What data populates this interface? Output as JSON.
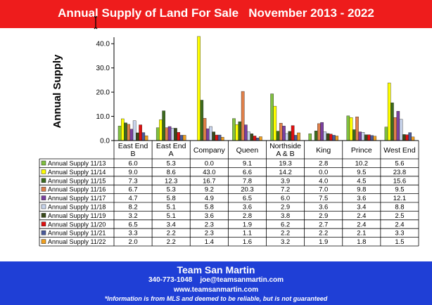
{
  "header": {
    "title": "Annual Supply of Land For Sale   November 2013 - 2022"
  },
  "footer": {
    "name": "Team San Martin",
    "phone": "340-773-1048",
    "email": "joe@teamsanmartin.com",
    "website": "www.teamsanmartin.com",
    "disclaimer": "*Information is from MLS and deemed to be reliable, but is not guaranteed"
  },
  "colors": {
    "header_bg": "#ee1c1c",
    "footer_bg": "#1f3fd6"
  },
  "chart_data": {
    "type": "bar",
    "title": "",
    "ylabel": "Annual Supply",
    "xlabel": "",
    "ylim": [
      0,
      45
    ],
    "yticks": [
      "0.0",
      "10.0",
      "20.0",
      "30.0",
      "40.0"
    ],
    "ytick_values": [
      0,
      10,
      20,
      30,
      40
    ],
    "grid": false,
    "legend": "data-table",
    "categories": [
      "East End B",
      "East End A",
      "Company",
      "Queen",
      "Northside A & B",
      "King",
      "Prince",
      "West End"
    ],
    "category_lines": [
      [
        "East End",
        "B"
      ],
      [
        "East End",
        "A"
      ],
      [
        "Company"
      ],
      [
        "Queen"
      ],
      [
        "Northside",
        "A & B"
      ],
      [
        "King"
      ],
      [
        "Prince"
      ],
      [
        "West End"
      ]
    ],
    "series": [
      {
        "name": "Annual Supply 11/13",
        "color": "#80c040",
        "values": [
          6.0,
          5.3,
          0.0,
          9.1,
          19.3,
          2.8,
          10.2,
          5.6
        ],
        "labels": [
          "6.0",
          "5.3",
          "0.0",
          "9.1",
          "19.3",
          "2.8",
          "10.2",
          "5.6"
        ]
      },
      {
        "name": "Annual Supply 11/14",
        "color": "#ffff00",
        "values": [
          9.0,
          8.6,
          43.0,
          6.6,
          14.2,
          0.0,
          9.5,
          23.8
        ],
        "labels": [
          "9.0",
          "8.6",
          "43.0",
          "6.6",
          "14.2",
          "0.0",
          "9.5",
          "23.8"
        ]
      },
      {
        "name": "Annual Supply 11/15",
        "color": "#3d6b1e",
        "values": [
          7.3,
          12.3,
          16.7,
          7.8,
          3.9,
          4.0,
          4.5,
          15.6
        ],
        "labels": [
          "7.3",
          "12.3",
          "16.7",
          "7.8",
          "3.9",
          "4.0",
          "4.5",
          "15.6"
        ]
      },
      {
        "name": "Annual Supply 11/16",
        "color": "#e0804a",
        "values": [
          6.7,
          5.3,
          9.2,
          20.3,
          7.2,
          7.0,
          9.8,
          9.5
        ],
        "labels": [
          "6.7",
          "5.3",
          "9.2",
          "20.3",
          "7.2",
          "7.0",
          "9.8",
          "9.5"
        ]
      },
      {
        "name": "Annual Supply 11/17",
        "color": "#7a3fa0",
        "values": [
          4.7,
          5.8,
          4.9,
          6.5,
          6.0,
          7.5,
          3.6,
          12.1
        ],
        "labels": [
          "4.7",
          "5.8",
          "4.9",
          "6.5",
          "6.0",
          "7.5",
          "3.6",
          "12.1"
        ]
      },
      {
        "name": "Annual Supply 11/18",
        "color": "#c8d4ec",
        "values": [
          8.2,
          5.1,
          5.8,
          3.6,
          2.9,
          3.6,
          3.4,
          8.8
        ],
        "labels": [
          "8.2",
          "5.1",
          "5.8",
          "3.6",
          "2.9",
          "3.6",
          "3.4",
          "8.8"
        ]
      },
      {
        "name": "Annual Supply 11/19",
        "color": "#3a4a1a",
        "values": [
          3.2,
          5.1,
          3.6,
          2.8,
          3.8,
          2.9,
          2.4,
          2.5
        ],
        "labels": [
          "3.2",
          "5.1",
          "3.6",
          "2.8",
          "3.8",
          "2.9",
          "2.4",
          "2.5"
        ]
      },
      {
        "name": "Annual Supply 11/20",
        "color": "#e01010",
        "values": [
          6.5,
          3.4,
          2.3,
          1.9,
          6.2,
          2.7,
          2.4,
          2.4
        ],
        "labels": [
          "6.5",
          "3.4",
          "2.3",
          "1.9",
          "6.2",
          "2.7",
          "2.4",
          "2.4"
        ]
      },
      {
        "name": "Annual Supply 11/21",
        "color": "#4a5a9a",
        "values": [
          3.3,
          2.2,
          2.3,
          1.1,
          2.2,
          2.2,
          2.1,
          3.3
        ],
        "labels": [
          "3.3",
          "2.2",
          "2.3",
          "1.1",
          "2.2",
          "2.2",
          "2.1",
          "3.3"
        ]
      },
      {
        "name": "Annual Supply 11/22",
        "color": "#f0a020",
        "values": [
          2.0,
          2.2,
          1.4,
          1.6,
          3.2,
          1.9,
          1.8,
          1.5
        ],
        "labels": [
          "2.0",
          "2.2",
          "1.4",
          "1.6",
          "3.2",
          "1.9",
          "1.8",
          "1.5"
        ]
      }
    ]
  }
}
